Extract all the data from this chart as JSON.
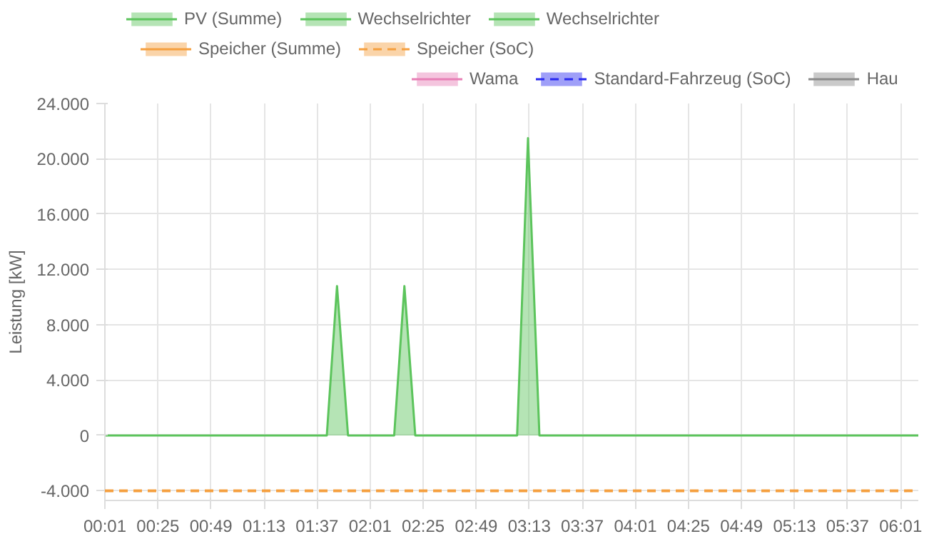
{
  "chart_data": {
    "type": "area",
    "ylabel": "Leistung [kW]",
    "x": [
      0.0167,
      1.69,
      1.767,
      1.85,
      2.198,
      2.275,
      2.357,
      3.125,
      3.207,
      3.293,
      6.15
    ],
    "series": [
      {
        "name": "PV (Summe)",
        "color": "#5cc45c",
        "values": [
          0,
          0,
          10800,
          0,
          0,
          10800,
          0,
          0,
          21500,
          0,
          0
        ]
      },
      {
        "name": "Wechselrichter",
        "color": "#5cc45c",
        "values": [
          null,
          null,
          null,
          null,
          null,
          null,
          null,
          null,
          null,
          null,
          null
        ]
      },
      {
        "name": "Wechselrichter",
        "color": "#5cc45c",
        "values": [
          null,
          null,
          null,
          null,
          null,
          null,
          null,
          null,
          null,
          null,
          null
        ]
      },
      {
        "color": "#f07070",
        "values": [
          null,
          null,
          null,
          null,
          null,
          null,
          null,
          null,
          null,
          null,
          null
        ]
      },
      {
        "name": "Speicher (Summe)",
        "color": "#f5a040",
        "values": [
          null,
          null,
          null,
          null,
          null,
          null,
          null,
          null,
          null,
          null,
          null
        ]
      },
      {
        "name": "Speicher (SoC)",
        "color": "#f5a040",
        "line_style": "dashed",
        "values": [
          null,
          null,
          null,
          null,
          null,
          null,
          null,
          null,
          null,
          null,
          null
        ]
      },
      {
        "color": "#f5a040",
        "values": [
          null,
          null,
          null,
          null,
          null,
          null,
          null,
          null,
          null,
          null,
          null
        ]
      },
      {
        "name": "Wama",
        "color": "#e77fb5",
        "values": [
          null,
          null,
          null,
          null,
          null,
          null,
          null,
          null,
          null,
          null,
          null
        ]
      },
      {
        "name": "Standard-Fahrzeug (SoC)",
        "color": "#2a2af0",
        "line_style": "dashed",
        "values": [
          null,
          null,
          null,
          null,
          null,
          null,
          null,
          null,
          null,
          null,
          null
        ]
      },
      {
        "name": "Hau",
        "color": "#8a8a8a",
        "values": [
          null,
          null,
          null,
          null,
          null,
          null,
          null,
          null,
          null,
          null,
          null
        ]
      }
    ],
    "ref_lines": [
      {
        "axis": "y",
        "value": -4000,
        "color": "#f5a040",
        "line_style": "dashed"
      }
    ],
    "xlim": [
      0.0167,
      6.15
    ],
    "xticks": [
      {
        "value": 0.0167,
        "label": "00:01"
      },
      {
        "value": 0.4167,
        "label": "00:25"
      },
      {
        "value": 0.8167,
        "label": "00:49"
      },
      {
        "value": 1.2167,
        "label": "01:13"
      },
      {
        "value": 1.6167,
        "label": "01:37"
      },
      {
        "value": 2.0167,
        "label": "02:01"
      },
      {
        "value": 2.4167,
        "label": "02:25"
      },
      {
        "value": 2.8167,
        "label": "02:49"
      },
      {
        "value": 3.2167,
        "label": "03:13"
      },
      {
        "value": 3.6167,
        "label": "03:37"
      },
      {
        "value": 4.0167,
        "label": "04:01"
      },
      {
        "value": 4.4167,
        "label": "04:25"
      },
      {
        "value": 4.8167,
        "label": "04:49"
      },
      {
        "value": 5.2167,
        "label": "05:13"
      },
      {
        "value": 5.6167,
        "label": "05:37"
      },
      {
        "value": 6.0167,
        "label": "06:01"
      }
    ],
    "ylim": [
      -4700,
      24000
    ],
    "yticks": [
      {
        "value": -4000,
        "label": "-4.000"
      },
      0,
      {
        "value": 4000,
        "label": "4.000"
      },
      {
        "value": 8000,
        "label": "8.000"
      },
      {
        "value": 12000,
        "label": "12.000"
      },
      {
        "value": 16000,
        "label": "16.000"
      },
      {
        "value": 20000,
        "label": "20.000"
      },
      {
        "value": 24000,
        "label": "24.000"
      }
    ],
    "grid": true,
    "legend": "top",
    "marker": "none"
  }
}
